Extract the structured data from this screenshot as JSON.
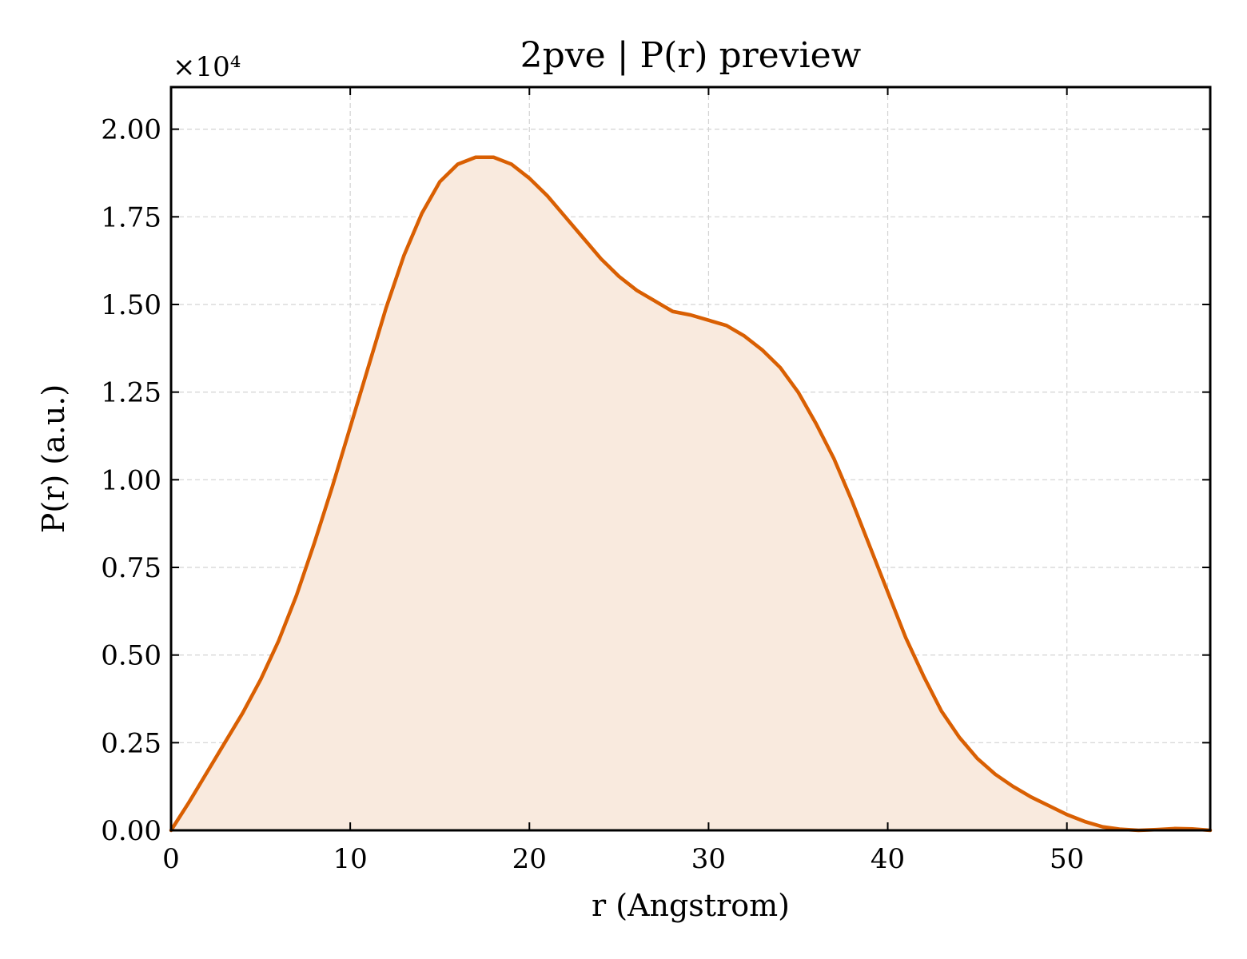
{
  "chart_data": {
    "type": "area",
    "title": "2pve | P(r) preview",
    "xlabel": "r (Angstrom)",
    "ylabel": "P(r) (a.u.)",
    "y_offset_label": "×10⁴",
    "xlim": [
      0,
      58
    ],
    "ylim": [
      0,
      2.12
    ],
    "y_scale_note": "values in units of 10^4",
    "xticks": [
      0,
      10,
      20,
      30,
      40,
      50
    ],
    "xtick_labels": [
      "0",
      "10",
      "20",
      "30",
      "40",
      "50"
    ],
    "yticks": [
      0,
      0.25,
      0.5,
      0.75,
      1.0,
      1.25,
      1.5,
      1.75,
      2.0
    ],
    "ytick_labels": [
      "0.00",
      "0.25",
      "0.50",
      "0.75",
      "1.00",
      "1.25",
      "1.50",
      "1.75",
      "2.00"
    ],
    "grid": true,
    "colors": {
      "line": "#d95f02",
      "fill": "#f9eade"
    },
    "series": [
      {
        "x": [
          0,
          1,
          2,
          3,
          4,
          5,
          6,
          7,
          8,
          9,
          10,
          11,
          12,
          13,
          14,
          15,
          16,
          17,
          18,
          19,
          20,
          21,
          22,
          23,
          24,
          25,
          26,
          27,
          28,
          29,
          30,
          31,
          32,
          33,
          34,
          35,
          36,
          37,
          38,
          39,
          40,
          41,
          42,
          43,
          44,
          45,
          46,
          47,
          48,
          49,
          50,
          51,
          52,
          53,
          54,
          55,
          56,
          57,
          58
        ],
        "values": [
          0.0,
          0.08,
          0.165,
          0.25,
          0.335,
          0.43,
          0.54,
          0.67,
          0.82,
          0.98,
          1.15,
          1.32,
          1.49,
          1.64,
          1.76,
          1.85,
          1.9,
          1.92,
          1.92,
          1.9,
          1.86,
          1.81,
          1.75,
          1.69,
          1.63,
          1.58,
          1.54,
          1.51,
          1.48,
          1.47,
          1.455,
          1.44,
          1.41,
          1.37,
          1.32,
          1.25,
          1.16,
          1.06,
          0.94,
          0.81,
          0.68,
          0.55,
          0.44,
          0.34,
          0.265,
          0.205,
          0.16,
          0.125,
          0.095,
          0.07,
          0.045,
          0.025,
          0.01,
          0.003,
          0.0,
          0.002,
          0.005,
          0.004,
          0.0
        ]
      }
    ]
  }
}
